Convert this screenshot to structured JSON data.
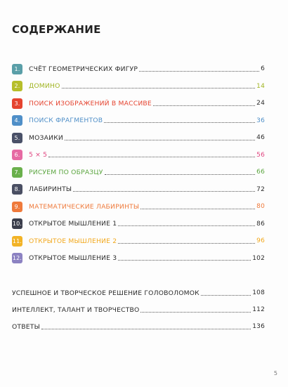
{
  "title": "СОДЕРЖАНИЕ",
  "chapters": [
    {
      "num": "1.",
      "label": "СЧЁТ ГЕОМЕТРИЧЕСКИХ ФИГУР",
      "page": "6",
      "color": "#5a9fa8",
      "text_color": "#2b2b2b",
      "page_color": "#2b2b2b"
    },
    {
      "num": "2.",
      "label": "ДОМИНО",
      "page": "14",
      "color": "#b6be2a",
      "text_color": "#a0b420",
      "page_color": "#a0b420"
    },
    {
      "num": "3.",
      "label": "ПОИСК ИЗОБРАЖЕНИЙ В МАССИВЕ",
      "page": "24",
      "color": "#e5432f",
      "text_color": "#e5432f",
      "page_color": "#2b2b2b"
    },
    {
      "num": "4.",
      "label": "ПОИСК ФРАГМЕНТОВ",
      "page": "36",
      "color": "#4f8fc8",
      "text_color": "#4f8fc8",
      "page_color": "#4f8fc8"
    },
    {
      "num": "5.",
      "label": "МОЗАИКИ",
      "page": "46",
      "color": "#4a5168",
      "text_color": "#2b2b2b",
      "page_color": "#2b2b2b"
    },
    {
      "num": "6.",
      "label": "5 × 5",
      "page": "56",
      "color": "#e66aa3",
      "text_color": "#e0447f",
      "page_color": "#e0447f"
    },
    {
      "num": "7.",
      "label": "РИСУЕМ ПО ОБРАЗЦУ",
      "page": "66",
      "color": "#6ab04c",
      "text_color": "#5aa53e",
      "page_color": "#5aa53e"
    },
    {
      "num": "8.",
      "label": "ЛАБИРИНТЫ",
      "page": "72",
      "color": "#4a4f63",
      "text_color": "#2b2b2b",
      "page_color": "#2b2b2b"
    },
    {
      "num": "9.",
      "label": "МАТЕМАТИЧЕСКИЕ ЛАБИРИНТЫ",
      "page": "80",
      "color": "#ef7a3b",
      "text_color": "#ef7a3b",
      "page_color": "#ef7a3b"
    },
    {
      "num": "10.",
      "label": "ОТКРЫТОЕ МЫШЛЕНИЕ 1",
      "page": "86",
      "color": "#3b3e4c",
      "text_color": "#2b2b2b",
      "page_color": "#2b2b2b"
    },
    {
      "num": "11.",
      "label": "ОТКРЫТОЕ МЫШЛЕНИЕ 2",
      "page": "96",
      "color": "#f2b326",
      "text_color": "#f2a81c",
      "page_color": "#f2a81c"
    },
    {
      "num": "12.",
      "label": "ОТКРЫТОЕ МЫШЛЕНИЕ 3",
      "page": "102",
      "color": "#8c82c2",
      "text_color": "#2b2b2b",
      "page_color": "#2b2b2b"
    }
  ],
  "extras": [
    {
      "label": "УСПЕШНОЕ И ТВОРЧЕСКОЕ РЕШЕНИЕ ГОЛОВОЛОМОК",
      "page": "108"
    },
    {
      "label": "ИНТЕЛЛЕКТ, ТАЛАНТ И ТВОРЧЕСТВО",
      "page": "112"
    },
    {
      "label": "ОТВЕТЫ",
      "page": "136"
    }
  ],
  "page_number": "5"
}
